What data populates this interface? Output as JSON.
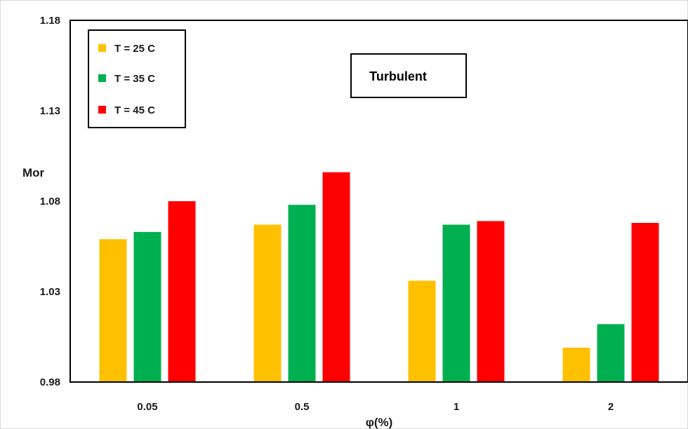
{
  "chart_data": {
    "type": "bar",
    "categories": [
      "0.05",
      "0.5",
      "1",
      "2"
    ],
    "series": [
      {
        "name": "T = 25 C",
        "color": "#FFC000",
        "values": [
          1.059,
          1.067,
          1.036,
          0.999
        ]
      },
      {
        "name": "T = 35 C",
        "color": "#00B050",
        "values": [
          1.063,
          1.078,
          1.067,
          1.012
        ]
      },
      {
        "name": "T = 45 C",
        "color": "#FF0000",
        "values": [
          1.08,
          1.096,
          1.069,
          1.068
        ]
      }
    ],
    "ylim": [
      0.98,
      1.18
    ],
    "yticks": [
      "0.98",
      "1.03",
      "1.08",
      "1.13",
      "1.18"
    ],
    "xlabel": "φ(%)",
    "ylabel": "Mor",
    "annotation": "Turbulent",
    "legend_position": "top-left",
    "grid": false
  }
}
